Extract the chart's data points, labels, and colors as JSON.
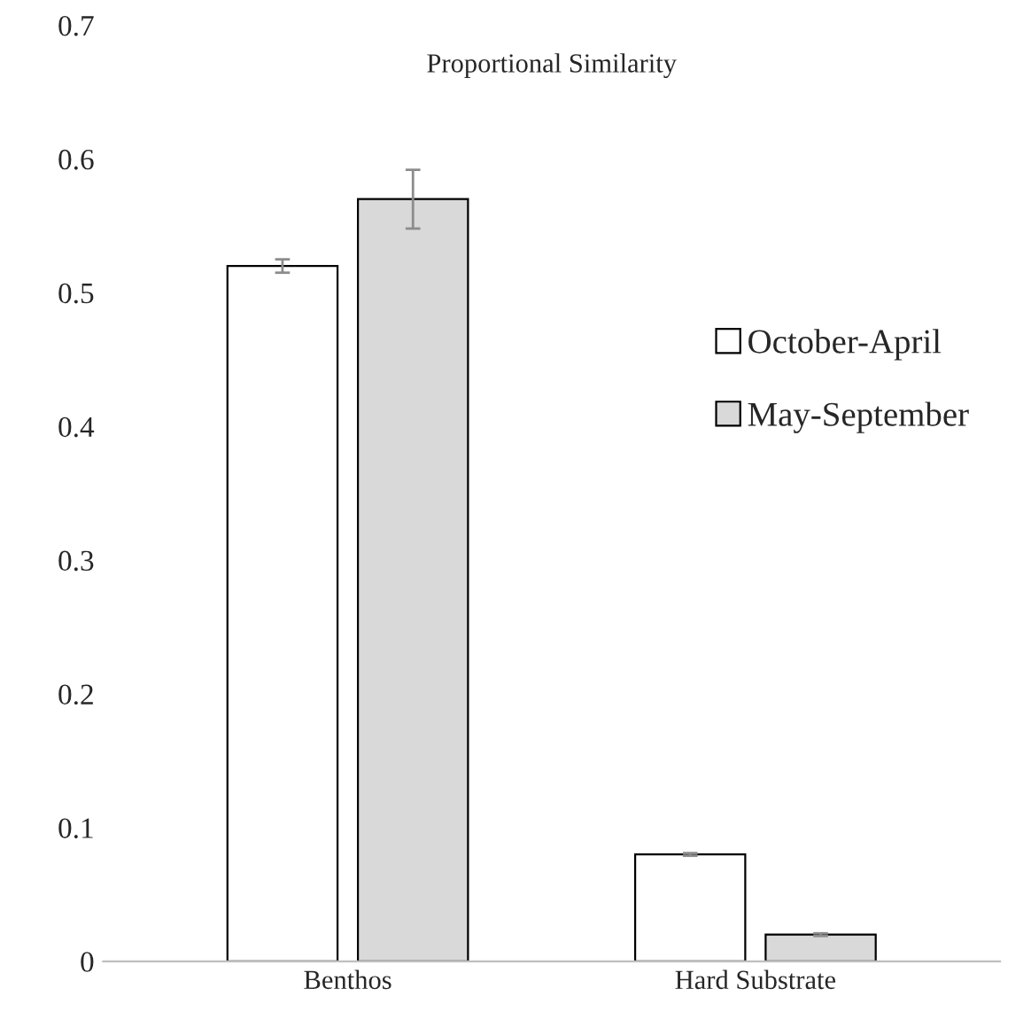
{
  "chart_data": {
    "type": "bar",
    "title": "Proportional Similarity",
    "categories": [
      "Benthos",
      "Hard Substrate"
    ],
    "series": [
      {
        "name": "October-April",
        "color": "#ffffff",
        "values": [
          0.52,
          0.08
        ],
        "errors": [
          0.005,
          0.001
        ]
      },
      {
        "name": "May-September",
        "color": "#d9d9d9",
        "values": [
          0.57,
          0.02
        ],
        "errors": [
          0.022,
          0.001
        ]
      }
    ],
    "ylim": [
      0,
      0.7
    ],
    "yticks": [
      0,
      0.1,
      0.2,
      0.3,
      0.4,
      0.5,
      0.6,
      0.7
    ],
    "grid": false,
    "legend": "right"
  }
}
